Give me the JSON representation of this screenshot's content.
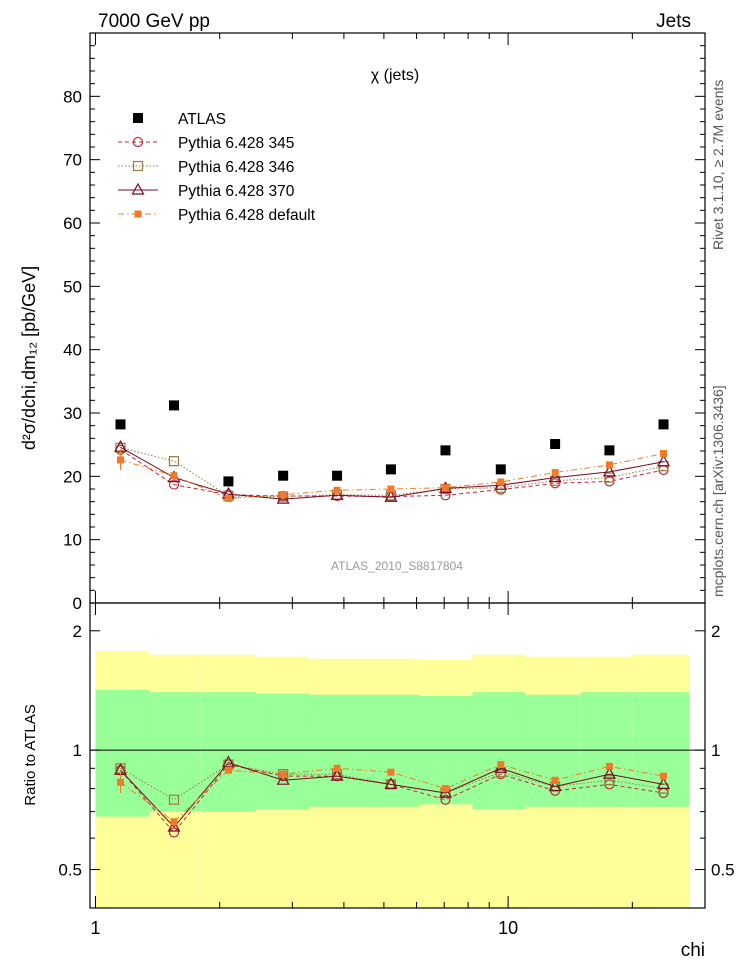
{
  "header": {
    "left": "7000 GeV pp",
    "right": "Jets"
  },
  "side_labels": {
    "rivet": "Rivet 3.1.10, ≥ 2.7M events",
    "mcplots": "mcplots.cern.ch [arXiv:1306.3436]"
  },
  "analysis_id": "ATLAS_2010_S8817804",
  "chart_data": [
    {
      "panel": "main",
      "type": "scatter",
      "title": "χ (jets)",
      "ylabel": "d²σ/dchi,dm₁₂ [pb/GeV]",
      "xscale": "log",
      "xlim": [
        0.97,
        30
      ],
      "ylim": [
        0,
        90
      ],
      "yticks": [
        0,
        10,
        20,
        30,
        40,
        50,
        60,
        70,
        80
      ],
      "legend_position": "top-left",
      "x": [
        1.15,
        1.55,
        2.1,
        2.85,
        3.85,
        5.2,
        7.05,
        9.6,
        13.0,
        17.6,
        23.8
      ],
      "series": [
        {
          "name": "ATLAS",
          "color": "#000000",
          "marker": "filled-square",
          "line": "none",
          "values": [
            28.2,
            31.2,
            19.2,
            20.1,
            20.1,
            21.1,
            24.1,
            21.1,
            25.1,
            24.1,
            28.2
          ]
        },
        {
          "name": "Pythia 6.428 345",
          "color": "#c4273c",
          "marker": "open-circle",
          "line": "dashed",
          "values": [
            24.2,
            18.7,
            17.1,
            16.9,
            16.9,
            16.8,
            17.0,
            17.9,
            18.9,
            19.2,
            21.0
          ]
        },
        {
          "name": "Pythia 6.428 346",
          "color": "#9a7a3a",
          "marker": "open-square",
          "line": "dotted",
          "values": [
            24.5,
            22.4,
            16.9,
            16.8,
            17.1,
            17.0,
            18.0,
            18.2,
            19.3,
            19.8,
            21.6
          ]
        },
        {
          "name": "Pythia 6.428 370",
          "color": "#7a0a22",
          "marker": "open-triangle",
          "line": "solid",
          "values": [
            24.6,
            19.8,
            17.2,
            16.4,
            17.0,
            16.7,
            18.1,
            18.6,
            19.8,
            20.7,
            22.3
          ]
        },
        {
          "name": "Pythia 6.428 default",
          "color": "#f07a2a",
          "marker": "filled-small-square",
          "line": "dashdot",
          "values": [
            22.6,
            20.1,
            16.5,
            17.1,
            17.8,
            18.0,
            18.2,
            19.1,
            20.6,
            21.8,
            23.6
          ]
        }
      ]
    },
    {
      "panel": "ratio",
      "type": "scatter",
      "ylabel": "Ratio to ATLAS",
      "xlabel": "chi",
      "xscale": "log",
      "yscale": "log",
      "xlim": [
        0.97,
        30
      ],
      "ylim": [
        0.4,
        2.35
      ],
      "yticks": [
        0.5,
        1,
        2
      ],
      "xticks": [
        1,
        10
      ],
      "x": [
        1.15,
        1.55,
        2.1,
        2.85,
        3.85,
        5.2,
        7.05,
        9.6,
        13.0,
        17.6,
        23.8
      ],
      "bin_edges": [
        1.0,
        1.35,
        1.8,
        2.45,
        3.3,
        4.5,
        6.1,
        8.2,
        11.0,
        15.0,
        20.0,
        27.5
      ],
      "band_inner": {
        "lo": [
          0.68,
          0.7,
          0.7,
          0.71,
          0.72,
          0.72,
          0.73,
          0.71,
          0.72,
          0.72,
          0.72
        ],
        "hi": [
          1.42,
          1.4,
          1.4,
          1.39,
          1.38,
          1.38,
          1.37,
          1.4,
          1.38,
          1.4,
          1.4
        ]
      },
      "band_outer": {
        "lo": [
          0.4,
          0.4,
          0.4,
          0.4,
          0.4,
          0.4,
          0.4,
          0.4,
          0.4,
          0.4,
          0.4
        ],
        "hi": [
          1.78,
          1.74,
          1.74,
          1.72,
          1.7,
          1.7,
          1.69,
          1.74,
          1.72,
          1.72,
          1.74
        ]
      },
      "series": [
        {
          "name": "Pythia 6.428 345",
          "color": "#c4273c",
          "marker": "open-circle",
          "line": "dashed",
          "values": [
            0.89,
            0.62,
            0.92,
            0.86,
            0.86,
            0.82,
            0.75,
            0.87,
            0.79,
            0.82,
            0.78
          ]
        },
        {
          "name": "Pythia 6.428 346",
          "color": "#9a7a3a",
          "marker": "open-square",
          "line": "dotted",
          "values": [
            0.9,
            0.75,
            0.92,
            0.87,
            0.87,
            0.82,
            0.78,
            0.88,
            0.81,
            0.84,
            0.8
          ]
        },
        {
          "name": "Pythia 6.428 370",
          "color": "#7a0a22",
          "marker": "open-triangle",
          "line": "solid",
          "values": [
            0.89,
            0.64,
            0.93,
            0.84,
            0.86,
            0.82,
            0.78,
            0.9,
            0.81,
            0.87,
            0.82
          ]
        },
        {
          "name": "Pythia 6.428 default",
          "color": "#f07a2a",
          "marker": "filled-small-square",
          "line": "dashdot",
          "values": [
            0.83,
            0.66,
            0.89,
            0.87,
            0.9,
            0.88,
            0.8,
            0.92,
            0.84,
            0.91,
            0.86
          ]
        }
      ]
    }
  ],
  "colors": {
    "band_outer": "#ffff99",
    "band_inner": "#99ff99"
  }
}
